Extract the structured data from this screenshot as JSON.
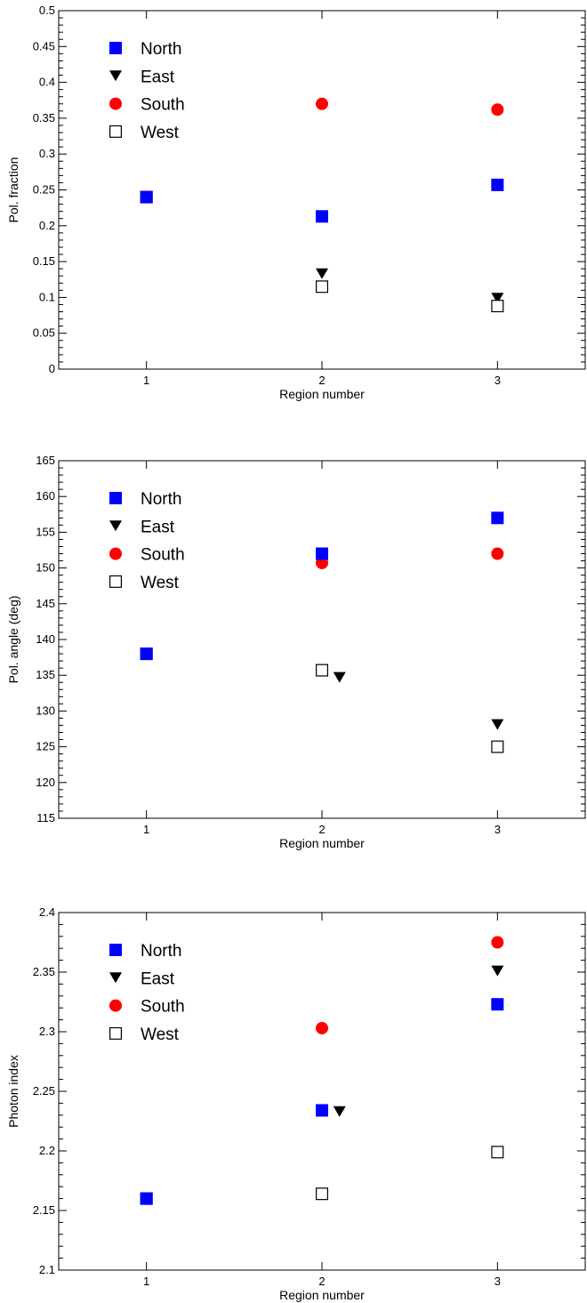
{
  "chart_data": [
    {
      "type": "scatter",
      "title": "",
      "xlabel": "Region number",
      "ylabel": "Pol. fraction",
      "xlim": [
        0.5,
        3.5
      ],
      "ylim": [
        0,
        0.5
      ],
      "x_ticks": [
        1,
        2,
        3
      ],
      "x_tick_labels": [
        "1",
        "2",
        "3"
      ],
      "y_ticks": [
        0,
        0.05,
        0.1,
        0.15,
        0.2,
        0.25,
        0.3,
        0.35,
        0.4,
        0.45,
        0.5
      ],
      "y_tick_labels": [
        "0",
        "0.05",
        "0.1",
        "0.15",
        "0.2",
        "0.25",
        "0.3",
        "0.35",
        "0.4",
        "0.45",
        "0.5"
      ],
      "grid": false,
      "legend_position": "top-left",
      "series": [
        {
          "name": "North",
          "marker": "square-filled",
          "color": "#0000ff",
          "points": [
            {
              "x": 1,
              "y": 0.24
            },
            {
              "x": 2,
              "y": 0.213
            },
            {
              "x": 3,
              "y": 0.257
            }
          ]
        },
        {
          "name": "East",
          "marker": "triangle-down",
          "color": "#000000",
          "points": [
            {
              "x": 1,
              "y": 0.24
            },
            {
              "x": 2,
              "y": 0.133
            },
            {
              "x": 3,
              "y": 0.099
            }
          ]
        },
        {
          "name": "South",
          "marker": "circle-filled",
          "color": "#ff0000",
          "points": [
            {
              "x": 1,
              "y": 0.24
            },
            {
              "x": 2,
              "y": 0.37
            },
            {
              "x": 3,
              "y": 0.362
            }
          ]
        },
        {
          "name": "West",
          "marker": "square-open",
          "color": "#000000",
          "points": [
            {
              "x": 1,
              "y": 0.24
            },
            {
              "x": 2,
              "y": 0.115
            },
            {
              "x": 3,
              "y": 0.088
            }
          ]
        }
      ]
    },
    {
      "type": "scatter",
      "title": "",
      "xlabel": "Region number",
      "ylabel": "Pol. angle (deg)",
      "xlim": [
        0.5,
        3.5
      ],
      "ylim": [
        115,
        165
      ],
      "x_ticks": [
        1,
        2,
        3
      ],
      "x_tick_labels": [
        "1",
        "2",
        "3"
      ],
      "y_ticks": [
        115,
        120,
        125,
        130,
        135,
        140,
        145,
        150,
        155,
        160,
        165
      ],
      "y_tick_labels": [
        "115",
        "120",
        "125",
        "130",
        "135",
        "140",
        "145",
        "150",
        "155",
        "160",
        "165"
      ],
      "grid": false,
      "legend_position": "top-left",
      "series": [
        {
          "name": "North",
          "marker": "square-filled",
          "color": "#0000ff",
          "points": [
            {
              "x": 1,
              "y": 138
            },
            {
              "x": 2,
              "y": 152
            },
            {
              "x": 3,
              "y": 157
            }
          ]
        },
        {
          "name": "East",
          "marker": "triangle-down",
          "color": "#000000",
          "points": [
            {
              "x": 1,
              "y": 138
            },
            {
              "x": 2.1,
              "y": 134.7
            },
            {
              "x": 3,
              "y": 128.1
            }
          ]
        },
        {
          "name": "South",
          "marker": "circle-filled",
          "color": "#ff0000",
          "points": [
            {
              "x": 1,
              "y": 138
            },
            {
              "x": 2,
              "y": 150.7
            },
            {
              "x": 3,
              "y": 152
            }
          ]
        },
        {
          "name": "West",
          "marker": "square-open",
          "color": "#000000",
          "points": [
            {
              "x": 1,
              "y": 138
            },
            {
              "x": 2,
              "y": 135.7
            },
            {
              "x": 3,
              "y": 125
            }
          ]
        }
      ]
    },
    {
      "type": "scatter",
      "title": "",
      "xlabel": "Region number",
      "ylabel": "Photon index",
      "xlim": [
        0.5,
        3.5
      ],
      "ylim": [
        2.1,
        2.4
      ],
      "x_ticks": [
        1,
        2,
        3
      ],
      "x_tick_labels": [
        "1",
        "2",
        "3"
      ],
      "y_ticks": [
        2.1,
        2.15,
        2.2,
        2.25,
        2.3,
        2.35,
        2.4
      ],
      "y_tick_labels": [
        "2.1",
        "2.15",
        "2.2",
        "2.25",
        "2.3",
        "2.35",
        "2.4"
      ],
      "grid": false,
      "legend_position": "top-left",
      "series": [
        {
          "name": "North",
          "marker": "square-filled",
          "color": "#0000ff",
          "points": [
            {
              "x": 1,
              "y": 2.16
            },
            {
              "x": 2,
              "y": 2.234
            },
            {
              "x": 3,
              "y": 2.323
            }
          ]
        },
        {
          "name": "East",
          "marker": "triangle-down",
          "color": "#000000",
          "points": [
            {
              "x": 1,
              "y": 2.16
            },
            {
              "x": 2.1,
              "y": 2.233
            },
            {
              "x": 3,
              "y": 2.351
            }
          ]
        },
        {
          "name": "South",
          "marker": "circle-filled",
          "color": "#ff0000",
          "points": [
            {
              "x": 1,
              "y": 2.16
            },
            {
              "x": 2,
              "y": 2.303
            },
            {
              "x": 3,
              "y": 2.375
            }
          ]
        },
        {
          "name": "West",
          "marker": "square-open",
          "color": "#000000",
          "points": [
            {
              "x": 1,
              "y": 2.16
            },
            {
              "x": 2,
              "y": 2.164
            },
            {
              "x": 3,
              "y": 2.199
            }
          ]
        }
      ]
    }
  ]
}
